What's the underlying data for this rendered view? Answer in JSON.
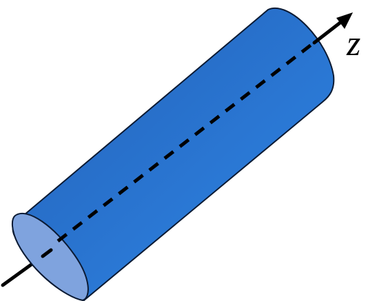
{
  "diagram": {
    "subject": "cylinder",
    "axis": {
      "label": "z",
      "style": "dashed inside cylinder, solid outside, arrow head at top-right"
    },
    "colors": {
      "body_light": "#2f86e6",
      "body_dark": "#2361b8",
      "end_cap": "#7fa3de",
      "outline": "#0b1a33",
      "axis": "#000000"
    }
  }
}
